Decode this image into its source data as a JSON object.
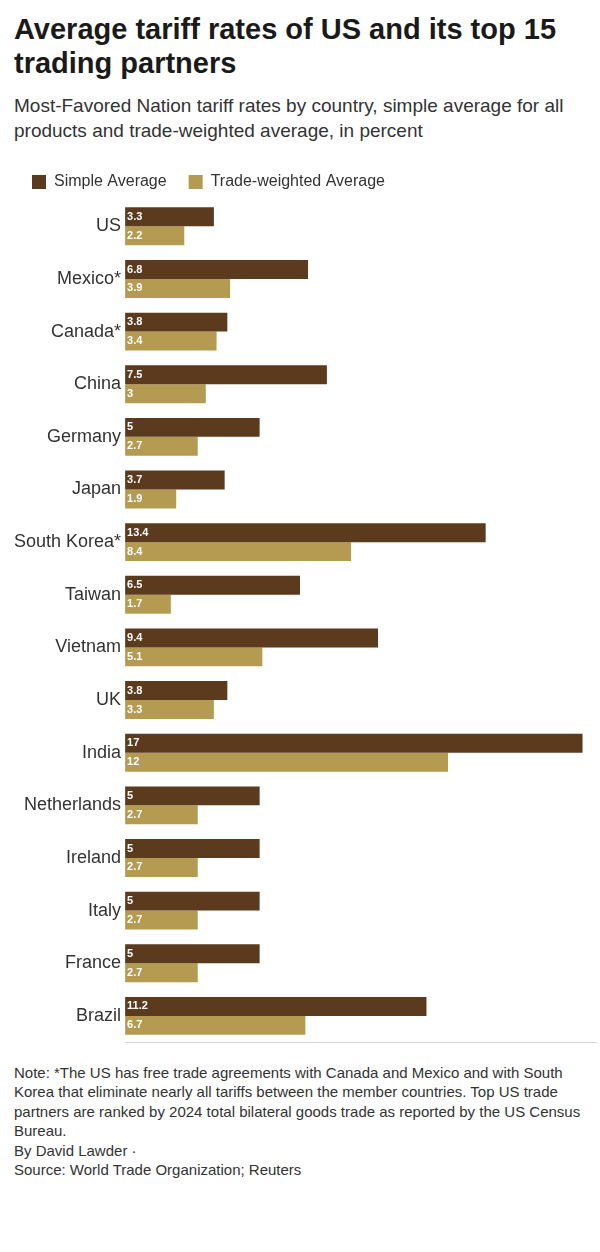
{
  "chart_data": {
    "type": "bar",
    "title": "Average tariff rates of US and its top 15 trading partners",
    "subtitle": "Most-Favored Nation tariff rates by country, simple average for all products and trade-weighted average, in percent",
    "categories": [
      "US",
      "Mexico*",
      "Canada*",
      "China",
      "Germany",
      "Japan",
      "South Korea*",
      "Taiwan",
      "Vietnam",
      "UK",
      "India",
      "Netherlands",
      "Ireland",
      "Italy",
      "France",
      "Brazil"
    ],
    "series": [
      {
        "name": "Simple Average",
        "color": "#5c3a1e",
        "values": [
          3.3,
          6.8,
          3.8,
          7.5,
          5,
          3.7,
          13.4,
          6.5,
          9.4,
          3.8,
          17,
          5,
          5,
          5,
          5,
          11.2
        ]
      },
      {
        "name": "Trade-weighted Average",
        "color": "#b59a52",
        "values": [
          2.2,
          3.9,
          3.4,
          3,
          2.7,
          1.9,
          8.4,
          1.7,
          5.1,
          3.3,
          12,
          2.7,
          2.7,
          2.7,
          2.7,
          6.7
        ]
      }
    ],
    "xlim": [
      0,
      17.5
    ],
    "orientation": "horizontal",
    "data_labels": true,
    "tick_labels": "y",
    "grid": false,
    "legend": "top-left",
    "note": "Note: *The US has free trade agreements with Canada and Mexico and with South Korea that eliminate nearly all tariffs between the member countries. Top US trade partners are ranked by 2024 total bilateral goods trade as reported by the US Census Bureau.",
    "byline": "By David Lawder ·",
    "source": "Source: World Trade Organization; Reuters"
  }
}
